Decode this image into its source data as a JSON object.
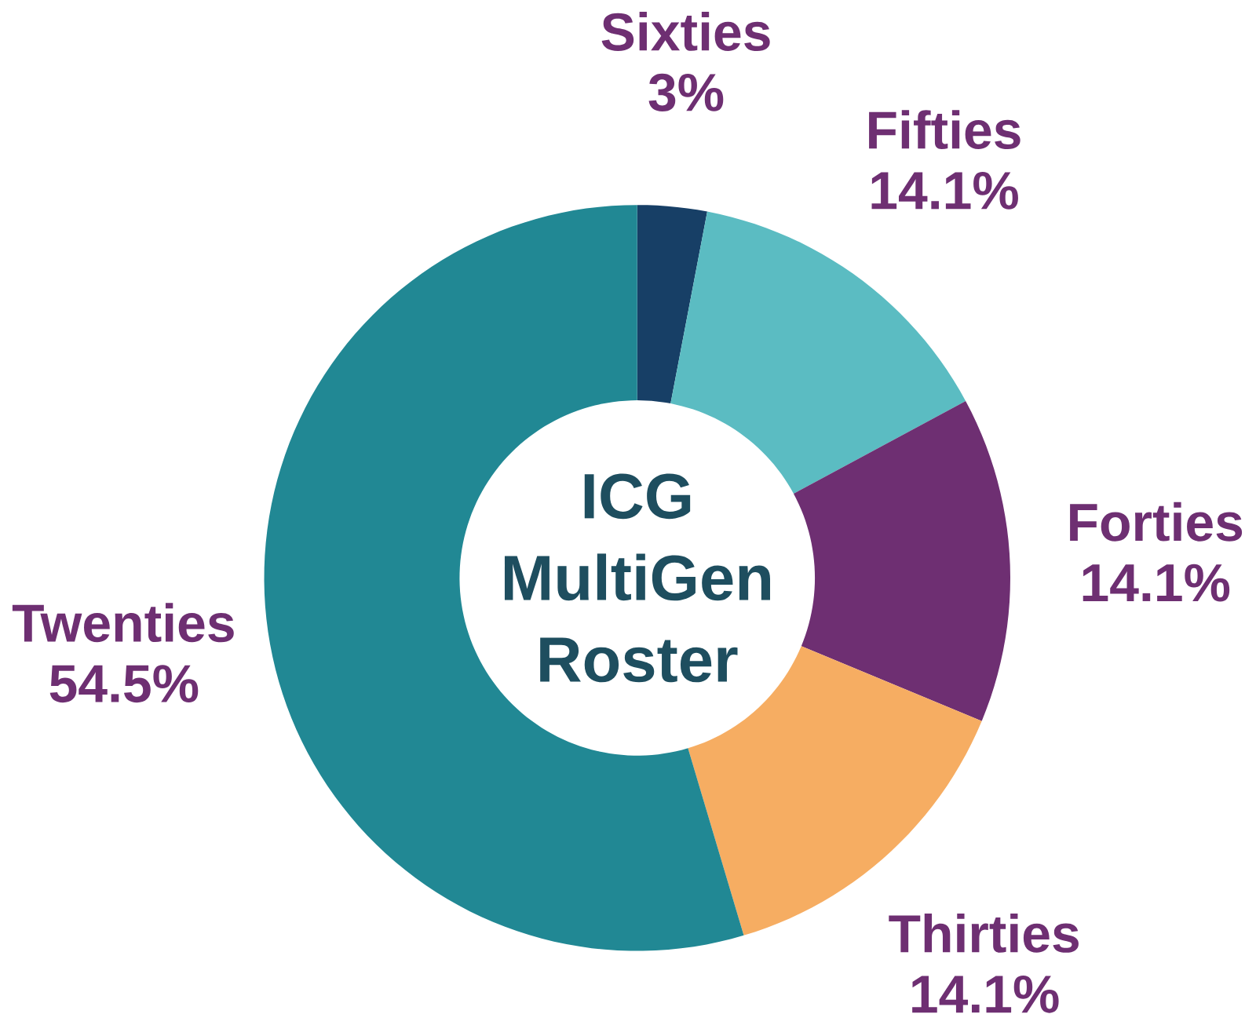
{
  "chart_data": {
    "type": "donut",
    "title": "ICG MultiGen Roster",
    "categories": [
      "Sixties",
      "Fifties",
      "Forties",
      "Thirties",
      "Twenties"
    ],
    "values": [
      3,
      14.1,
      14.1,
      14.1,
      54.5
    ],
    "colors": [
      "#173f66",
      "#5bbcc2",
      "#6e2f72",
      "#f6ad62",
      "#218894"
    ],
    "value_labels": [
      "3%",
      "14.1%",
      "14.1%",
      "14.1%",
      "54.5%"
    ]
  }
}
